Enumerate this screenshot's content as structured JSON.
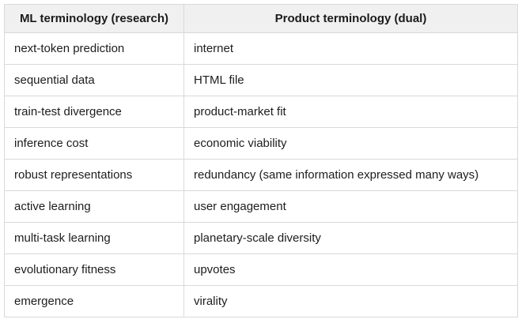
{
  "table": {
    "name": "ml-vs-product-terminology",
    "headers": [
      "ML terminology (research)",
      "Product terminology (dual)"
    ],
    "rows": [
      [
        "next-token prediction",
        "internet"
      ],
      [
        "sequential data",
        "HTML file"
      ],
      [
        "train-test divergence",
        "product-market fit"
      ],
      [
        "inference cost",
        "economic viability"
      ],
      [
        "robust representations",
        "redundancy (same information expressed many ways)"
      ],
      [
        "active learning",
        "user engagement"
      ],
      [
        "multi-task learning",
        "planetary-scale diversity"
      ],
      [
        "evolutionary fitness",
        "upvotes"
      ],
      [
        "emergence",
        "virality"
      ]
    ],
    "colors": {
      "header_background": "#f0f0f1",
      "border": "#d9d9d9",
      "text": "#1d1d1f",
      "page_background": "#ffffff"
    }
  }
}
